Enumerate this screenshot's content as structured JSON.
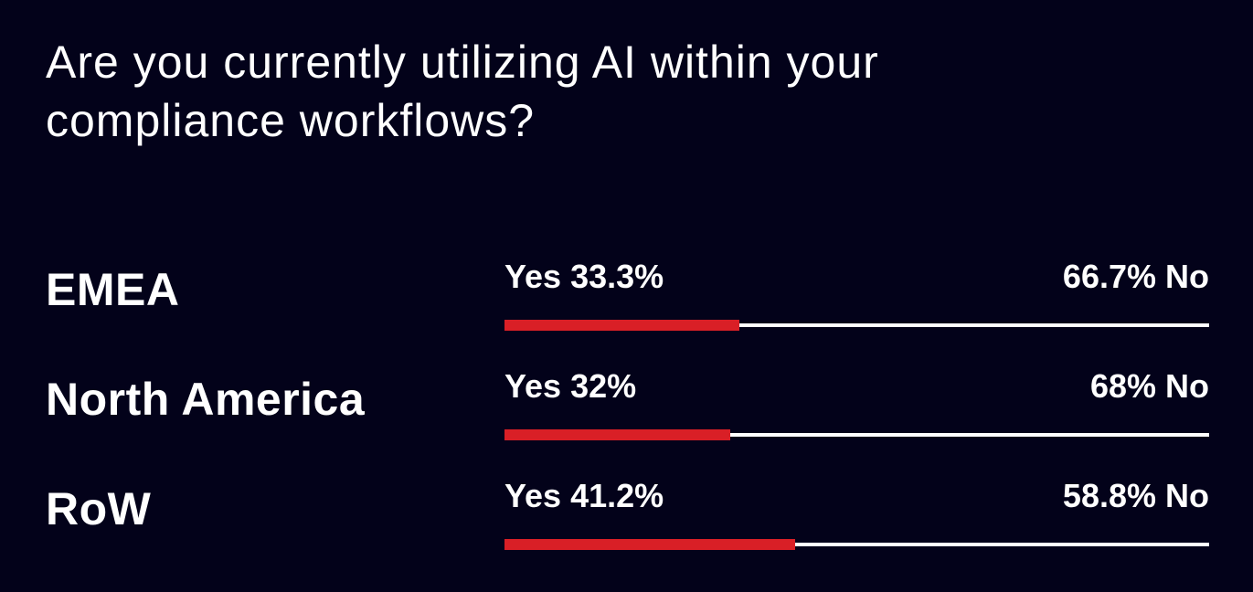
{
  "colors": {
    "background": "#03021a",
    "text": "#ffffff",
    "yes": "#d91f26",
    "no": "#ffffff"
  },
  "chart_data": {
    "type": "bar",
    "title": "Are you currently utilizing AI within your compliance workflows?",
    "categories": [
      "EMEA",
      "North America",
      "RoW"
    ],
    "series": [
      {
        "name": "Yes",
        "values": [
          33.3,
          32,
          41.2
        ]
      },
      {
        "name": "No",
        "values": [
          66.7,
          68,
          58.8
        ]
      }
    ],
    "labels": [
      {
        "yes": "Yes 33.3%",
        "no": "66.7% No"
      },
      {
        "yes": "Yes 32%",
        "no": "68% No"
      },
      {
        "yes": "Yes 41.2%",
        "no": "58.8% No"
      }
    ],
    "xlim": [
      0,
      100
    ]
  }
}
